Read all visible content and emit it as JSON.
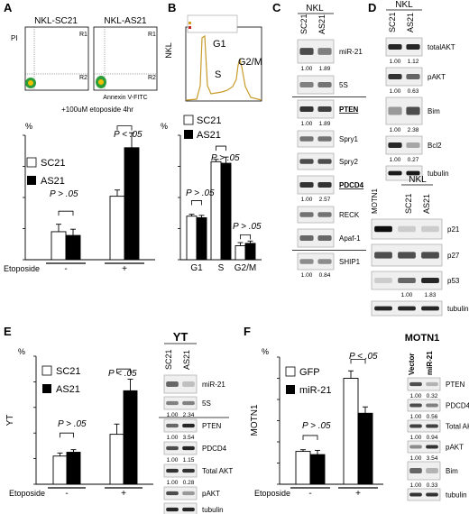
{
  "panels": {
    "A": {
      "letter": "A",
      "flow_titles": [
        "NKL-SC21",
        "NKL-AS21"
      ],
      "flow_regions": [
        "R1",
        "R2"
      ],
      "flow_pi": "PI",
      "flow_xaxis": "Annexin V-FITC",
      "treatment_note": "+100uM etoposide 4hr",
      "percent": "%",
      "legend": [
        "SC21",
        "AS21"
      ],
      "p_left": "P > .05",
      "p_right": "P < .05",
      "treat_label": "Etoposide",
      "treat_minus": "-",
      "treat_plus": "+"
    },
    "B": {
      "letter": "B",
      "cell_label": "NKL",
      "peaks": [
        "G1",
        "S",
        "G2/M"
      ],
      "percent": "%",
      "legend": [
        "SC21",
        "AS21"
      ],
      "p_labels": [
        "P > .05",
        "P > .05",
        "P > .05"
      ],
      "phases": [
        "G1",
        "S",
        "G2/M"
      ]
    },
    "C": {
      "letter": "C",
      "cell_label": "NKL",
      "lanes": [
        "SC21",
        "AS21"
      ],
      "blots": [
        {
          "name": "miR-21",
          "q": [
            "1.00",
            "1.89"
          ]
        },
        {
          "name": "5S",
          "q": [
            "",
            ""
          ]
        },
        {
          "name": "PTEN",
          "q": [
            "1.00",
            "1.89"
          ]
        },
        {
          "name": "Spry1",
          "q": [
            "",
            ""
          ]
        },
        {
          "name": "Spry2",
          "q": [
            "",
            ""
          ]
        },
        {
          "name": "PDCD4",
          "q": [
            "1.00",
            "2.57"
          ]
        },
        {
          "name": "RECK",
          "q": [
            "",
            ""
          ]
        },
        {
          "name": "Apaf-1",
          "q": [
            "",
            ""
          ]
        },
        {
          "name": "SHIP1",
          "q": [
            "1.00",
            "0.84"
          ]
        }
      ]
    },
    "D": {
      "letter": "D",
      "cell_label": "NKL",
      "lanes": [
        "SC21",
        "AS21"
      ],
      "blots": [
        {
          "name": "totalAKT",
          "q": [
            "1.00",
            "1.12"
          ]
        },
        {
          "name": "pAKT",
          "q": [
            "1.00",
            "0.63"
          ]
        },
        {
          "name": "Bim",
          "q": [
            "1.00",
            "2.38"
          ]
        },
        {
          "name": "Bcl2",
          "q": [
            "1.00",
            "0.27"
          ]
        },
        {
          "name": "tubulin",
          "q": [
            "",
            ""
          ]
        }
      ],
      "cell_label2": "NKL",
      "lanes2": [
        "MOTN1",
        "SC21",
        "AS21"
      ],
      "blots2": [
        {
          "name": "p21",
          "q": [
            "",
            ""
          ]
        },
        {
          "name": "p27",
          "q": [
            "",
            ""
          ]
        },
        {
          "name": "p53",
          "q": [
            "1.00",
            "1.83"
          ]
        },
        {
          "name": "tubulin",
          "q": [
            "",
            ""
          ]
        }
      ]
    },
    "E": {
      "letter": "E",
      "cell_label": "YT",
      "percent": "%",
      "legend": [
        "SC21",
        "AS21"
      ],
      "p_left": "P > .05",
      "p_right": "P < .05",
      "treat_label": "Etoposide",
      "treat_minus": "-",
      "treat_plus": "+",
      "blot_title": "YT",
      "lanes": [
        "SC21",
        "AS21"
      ],
      "blots": [
        {
          "name": "miR-21",
          "q": [
            "",
            ""
          ]
        },
        {
          "name": "5S",
          "q": [
            "1.00",
            "2.34"
          ]
        },
        {
          "name": "PTEN",
          "q": [
            "1.00",
            "3.54"
          ]
        },
        {
          "name": "PDCD4",
          "q": [
            "1.00",
            "1.15"
          ]
        },
        {
          "name": "Total AKT",
          "q": [
            "1.00",
            "0.28"
          ]
        },
        {
          "name": "pAKT",
          "q": [
            "",
            ""
          ]
        },
        {
          "name": "tubulin",
          "q": [
            "",
            ""
          ]
        }
      ]
    },
    "F": {
      "letter": "F",
      "cell_label": "MOTN1",
      "percent": "%",
      "legend": [
        "GFP",
        "miR-21"
      ],
      "p_left": "P > .05",
      "p_right": "P < .05",
      "treat_label": "Etoposide",
      "treat_minus": "-",
      "treat_plus": "+",
      "blot_title": "MOTN1",
      "lanes": [
        "Vector",
        "miR-21"
      ],
      "blots": [
        {
          "name": "PTEN",
          "q": [
            "1.00",
            "0.32"
          ]
        },
        {
          "name": "PDCD4",
          "q": [
            "1.00",
            "0.56"
          ]
        },
        {
          "name": "Total AKT",
          "q": [
            "1.00",
            "0.94"
          ]
        },
        {
          "name": "pAKT",
          "q": [
            "1.00",
            "3.54"
          ]
        },
        {
          "name": "Bim",
          "q": [
            "1.00",
            "0.33"
          ]
        },
        {
          "name": "tubulin",
          "q": [
            "",
            ""
          ]
        }
      ]
    }
  },
  "chart_data": [
    {
      "panel": "A",
      "type": "bar",
      "categories": [
        "-",
        "+"
      ],
      "series": [
        {
          "name": "SC21",
          "values": [
            4.5,
            10.2
          ],
          "errors": [
            1.2,
            1.0
          ]
        },
        {
          "name": "AS21",
          "values": [
            3.9,
            18.0
          ],
          "errors": [
            1.0,
            2.4
          ]
        }
      ],
      "ylim": [
        0,
        20
      ],
      "yticks": [
        0,
        5,
        10,
        15,
        20
      ]
    },
    {
      "panel": "B",
      "type": "bar",
      "categories": [
        "G1",
        "S",
        "G2/M"
      ],
      "series": [
        {
          "name": "SC21",
          "values": [
            28,
            63,
            9
          ],
          "errors": [
            1.2,
            1.5,
            2
          ]
        },
        {
          "name": "AS21",
          "values": [
            27,
            62,
            10.5
          ],
          "errors": [
            1.5,
            4,
            1.5
          ]
        }
      ],
      "ylim": [
        0,
        80
      ],
      "yticks": [
        0,
        20,
        40,
        60,
        80
      ]
    },
    {
      "panel": "E",
      "type": "bar",
      "categories": [
        "-",
        "+"
      ],
      "series": [
        {
          "name": "SC21",
          "values": [
            11,
            19.5
          ],
          "errors": [
            1.2,
            4
          ]
        },
        {
          "name": "AS21",
          "values": [
            12.5,
            36.5
          ],
          "errors": [
            1.0,
            4.5
          ]
        }
      ],
      "ylim": [
        0,
        50
      ],
      "yticks": [
        0,
        10,
        20,
        30,
        40,
        50
      ]
    },
    {
      "panel": "F",
      "type": "bar",
      "categories": [
        "-",
        "+"
      ],
      "series": [
        {
          "name": "GFP",
          "values": [
            15.5,
            50
          ],
          "errors": [
            0.8,
            3.5
          ]
        },
        {
          "name": "miR-21",
          "values": [
            14,
            33.5
          ],
          "errors": [
            2,
            3
          ]
        }
      ],
      "ylim": [
        0,
        60
      ],
      "yticks": [
        0,
        10,
        20,
        30,
        40,
        50,
        60
      ]
    }
  ]
}
